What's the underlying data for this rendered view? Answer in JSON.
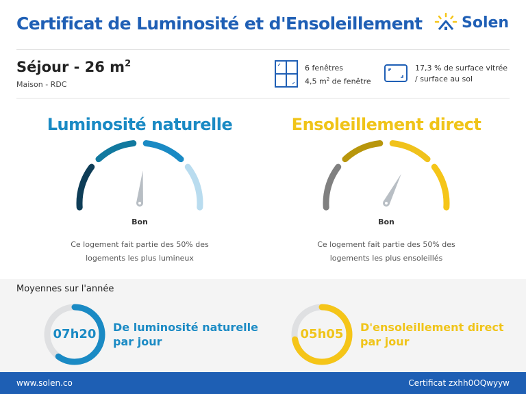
{
  "header": {
    "title": "Certificat de Luminosité et d'Ensoleillement",
    "logo": "Solen"
  },
  "room": {
    "name": "Séjour - 26 m",
    "name_sup": "2",
    "subtitle": "Maison - RDC"
  },
  "windows": {
    "icon": "window-icon",
    "line1": "6 fenêtres",
    "line2_pre": "4,5 m",
    "line2_sup": "2",
    "line2_post": " de fenêtre"
  },
  "glazing": {
    "icon": "glazed-surface-icon",
    "line1": "17,3 % de surface vitrée",
    "line2": "/ surface au sol"
  },
  "gauges": [
    {
      "title": "Luminosité naturelle",
      "color": "#1a8ac4",
      "segment_colors": [
        "#0e3d57",
        "#11799f",
        "#1a8ac4",
        "#b9dcef"
      ],
      "needle_value": 0.53,
      "label": "Bon",
      "description": "Ce logement fait partie des 50% des logements les plus lumineux"
    },
    {
      "title": "Ensoleillement direct",
      "color": "#f0c419",
      "segment_colors": [
        "#808080",
        "#b8960c",
        "#f0c21c",
        "#f5c518"
      ],
      "needle_value": 0.65,
      "label": "Bon",
      "description": "Ce logement fait partie des 50% des logements les plus ensoleillés"
    }
  ],
  "averages": {
    "title": "Moyennes sur l'année",
    "items": [
      {
        "value": "07h20",
        "label1": "De luminosité naturelle",
        "label2": "par jour",
        "color": "#1a8ac4",
        "fill": 0.6
      },
      {
        "value": "05h05",
        "label1": "D'ensoleillement direct",
        "label2": "par jour",
        "color": "#f5c518",
        "fill": 0.72
      }
    ]
  },
  "footer": {
    "website": "www.solen.co",
    "certificate": "Certificat zxhh0OQwyyw"
  }
}
